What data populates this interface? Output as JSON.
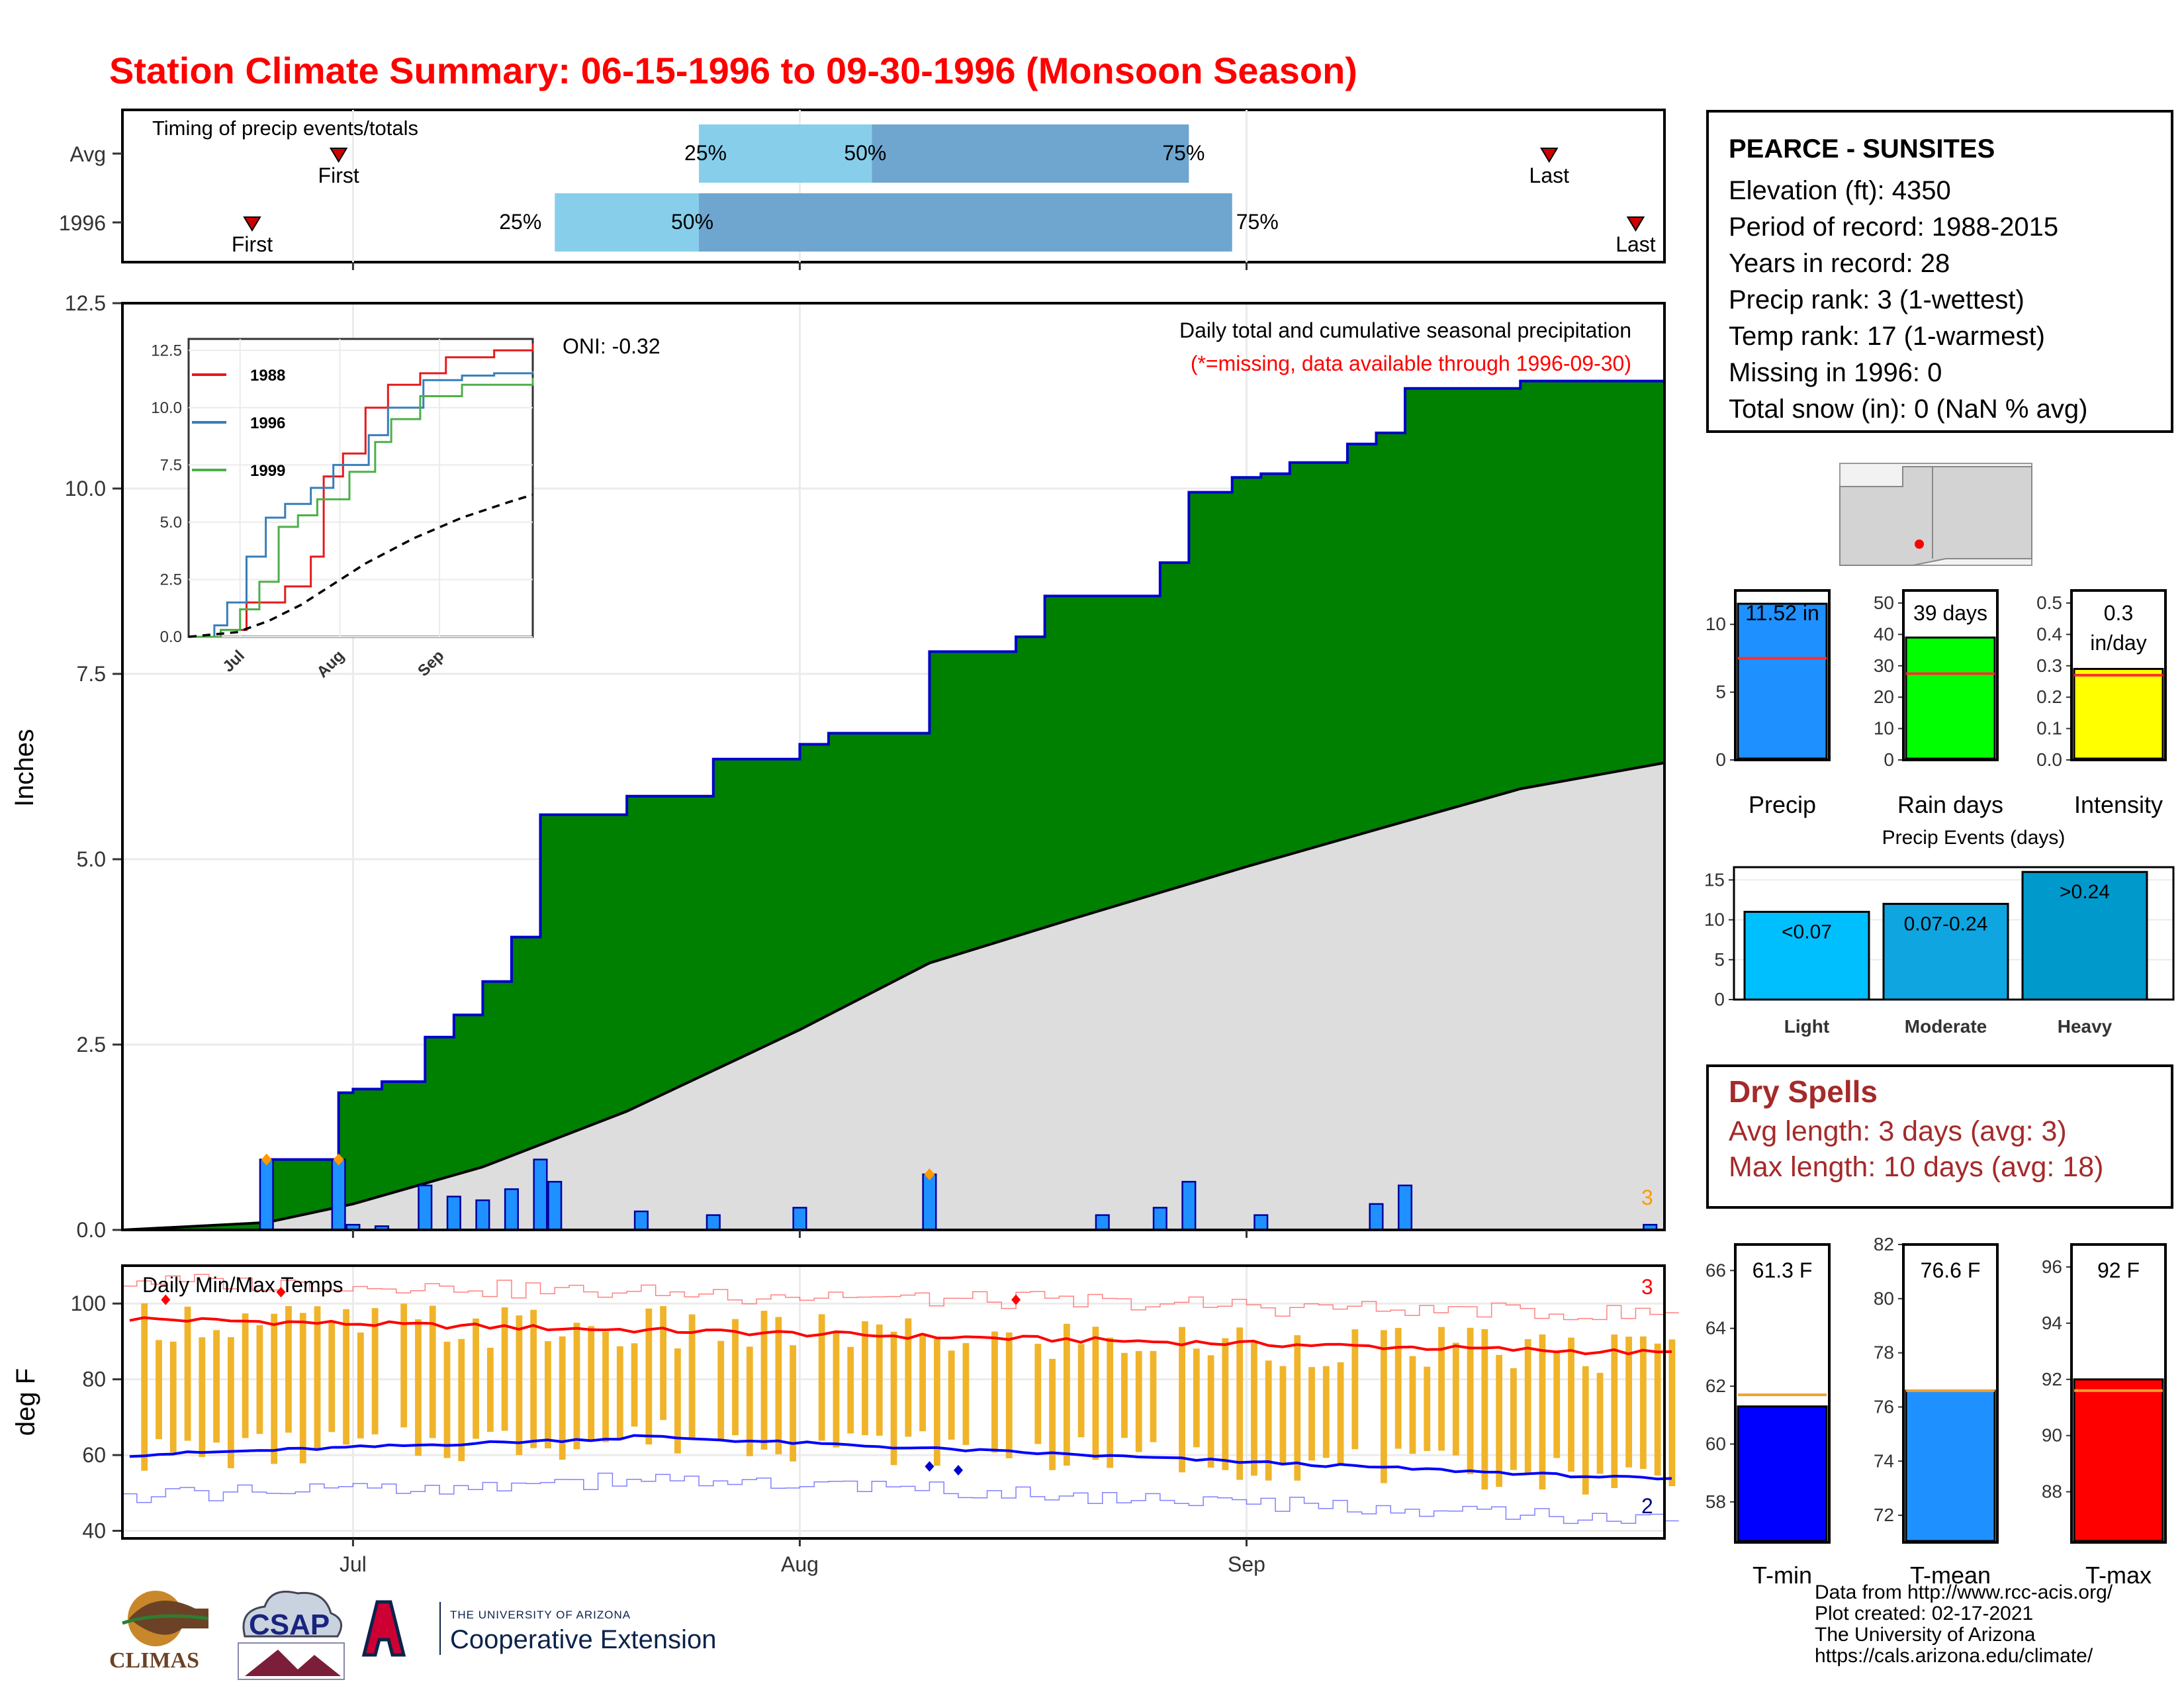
{
  "title": "Station Climate Summary: 06-15-1996 to 09-30-1996 (Monsoon Season)",
  "timing": {
    "label": "Timing of precip events/totals",
    "rows": [
      {
        "name": "Avg",
        "first": "2024-06-30",
        "q25": "2024-07-25",
        "q50": "2024-08-06",
        "q75": "2024-08-28",
        "last": "2024-09-22"
      },
      {
        "name": "1996",
        "first": "2024-06-24",
        "q25": "2024-07-15",
        "q50": "2024-07-25",
        "q75": "2024-08-31",
        "last": "2024-09-28"
      }
    ],
    "labels": {
      "first": "First",
      "last": "Last",
      "q25": "25%",
      "q50": "50%",
      "q75": "75%"
    }
  },
  "station": {
    "name": "PEARCE - SUNSITES",
    "lines": [
      "Elevation (ft): 4350",
      "Period of record: 1988-2015",
      "Years in record: 28",
      "Precip rank: 3 (1-wettest)",
      "Temp rank: 17 (1-warmest)",
      "Missing in 1996: 0",
      "Total snow (in): 0 (NaN % avg)"
    ]
  },
  "precip_main": {
    "annotation1": "Daily total and cumulative seasonal precipitation",
    "annotation2": "(*=missing, data available through 1996-09-30)",
    "oni": "ONI: -0.32",
    "ylabel": "Inches",
    "corner_count": "3"
  },
  "inset": {
    "legend": [
      "1988",
      "1996",
      "1999"
    ],
    "colors": [
      "#e41a1c",
      "#377eb8",
      "#4daf4a"
    ],
    "yticks": [
      "0.0",
      "2.5",
      "5.0",
      "7.5",
      "10.0",
      "12.5"
    ],
    "xticks": [
      "Jul",
      "Aug",
      "Sep"
    ]
  },
  "temp": {
    "label": "Daily Min/Max Temps",
    "ylabel": "deg F",
    "yticks": [
      "40",
      "60",
      "80",
      "100"
    ],
    "record_high_count": "3",
    "record_low_count": "2"
  },
  "xaxis": {
    "ticks": [
      "Jul",
      "Aug",
      "Sep"
    ]
  },
  "bars": {
    "precip": {
      "label": "Precip",
      "value_text": "11.52 in",
      "value": 11.52,
      "avg": 7.5,
      "color": "#1e90ff",
      "ticks": [
        "0",
        "5",
        "10"
      ]
    },
    "raindays": {
      "label": "Rain days",
      "value_text": "39 days",
      "value": 39,
      "avg": 27.5,
      "color": "#00ff00",
      "ticks": [
        "0",
        "10",
        "20",
        "30",
        "40",
        "50"
      ]
    },
    "intensity": {
      "label": "Intensity",
      "value_text": "0.3",
      "value_text2": "in/day",
      "value": 0.29,
      "avg": 0.27,
      "color": "#ffff00",
      "ticks": [
        "0.0",
        "0.1",
        "0.2",
        "0.3",
        "0.4",
        "0.5"
      ]
    }
  },
  "events": {
    "title": "Precip Events (days)",
    "categories": [
      "Light",
      "Moderate",
      "Heavy"
    ],
    "labels": [
      "<0.07",
      "0.07-0.24",
      ">0.24"
    ],
    "values": [
      11,
      12,
      16
    ],
    "colors": [
      "#00bfff",
      "#0ea5e0",
      "#0099cc"
    ],
    "ticks": [
      "0",
      "5",
      "10",
      "15"
    ]
  },
  "dry_spells": {
    "title": "Dry Spells",
    "avg_length": "Avg length: 3 days (avg: 3)",
    "max_length": "Max length: 10 days (avg: 18)"
  },
  "temp_bars": {
    "tmin": {
      "label": "T-min",
      "value_text": "61.3 F",
      "value": 61.3,
      "avg": 61.7,
      "color": "#0000ff",
      "ticks": [
        "58",
        "60",
        "62",
        "64",
        "66"
      ]
    },
    "tmean": {
      "label": "T-mean",
      "value_text": "76.6 F",
      "value": 76.6,
      "avg": 76.6,
      "color": "#1e90ff",
      "ticks": [
        "72",
        "74",
        "76",
        "78",
        "80",
        "82"
      ]
    },
    "tmax": {
      "label": "T-max",
      "value_text": "92 F",
      "value": 92,
      "avg": 91.6,
      "color": "#ff0000",
      "ticks": [
        "88",
        "90",
        "92",
        "94",
        "96"
      ]
    }
  },
  "credits": [
    "Data from http://www.rcc-acis.org/",
    "Plot created: 02-17-2021",
    "The University of Arizona",
    "https://cals.arizona.edu/climate/"
  ],
  "logos": {
    "climas": "CLIMAS",
    "csap": "CSAP",
    "ua_small": "THE UNIVERSITY OF ARIZONA",
    "ua_big": "Cooperative Extension"
  },
  "chart_data": [
    {
      "type": "area",
      "title": "Daily total and cumulative seasonal precipitation",
      "ylabel": "Inches",
      "ylim": [
        0,
        12.5
      ],
      "xlim": [
        "1996-06-15",
        "1996-09-30"
      ],
      "series": [
        {
          "name": "1996 cumulative",
          "x": [
            "1996-06-15",
            "1996-06-25",
            "1996-06-30",
            "1996-07-01",
            "1996-07-03",
            "1996-07-06",
            "1996-07-08",
            "1996-07-10",
            "1996-07-12",
            "1996-07-14",
            "1996-07-20",
            "1996-07-26",
            "1996-08-01",
            "1996-08-03",
            "1996-08-10",
            "1996-08-16",
            "1996-08-18",
            "1996-08-26",
            "1996-08-28",
            "1996-08-31",
            "1996-09-02",
            "1996-09-04",
            "1996-09-08",
            "1996-09-10",
            "1996-09-12",
            "1996-09-20",
            "1996-09-30"
          ],
          "values": [
            0,
            0.95,
            1.85,
            1.9,
            2.0,
            2.6,
            2.9,
            3.35,
            3.95,
            5.6,
            5.85,
            6.35,
            6.55,
            6.7,
            7.8,
            8.0,
            8.55,
            9.0,
            9.95,
            10.15,
            10.2,
            10.35,
            10.6,
            10.75,
            11.35,
            11.45,
            11.52
          ]
        },
        {
          "name": "Avg cumulative",
          "x": [
            "1996-06-15",
            "1996-06-25",
            "1996-07-01",
            "1996-07-10",
            "1996-07-20",
            "1996-08-01",
            "1996-08-10",
            "1996-08-20",
            "1996-09-01",
            "1996-09-10",
            "1996-09-20",
            "1996-09-30"
          ],
          "values": [
            0,
            0.1,
            0.35,
            0.85,
            1.6,
            2.7,
            3.6,
            4.2,
            4.9,
            5.4,
            5.95,
            6.3
          ]
        },
        {
          "name": "Daily precip",
          "x": [
            "1996-06-25",
            "1996-06-30",
            "1996-07-01",
            "1996-07-03",
            "1996-07-06",
            "1996-07-08",
            "1996-07-10",
            "1996-07-12",
            "1996-07-14",
            "1996-07-15",
            "1996-07-21",
            "1996-07-26",
            "1996-08-01",
            "1996-08-10",
            "1996-08-22",
            "1996-08-26",
            "1996-08-28",
            "1996-09-02",
            "1996-09-10",
            "1996-09-12",
            "1996-09-29"
          ],
          "values": [
            0.95,
            0.95,
            0.07,
            0.05,
            0.6,
            0.45,
            0.4,
            0.55,
            0.95,
            0.65,
            0.25,
            0.2,
            0.3,
            0.75,
            0.2,
            0.3,
            0.65,
            0.2,
            0.35,
            0.6,
            0.07
          ]
        }
      ]
    },
    {
      "type": "line",
      "title": "Daily Min/Max Temps",
      "ylabel": "deg F",
      "ylim": [
        38,
        110
      ],
      "series": [
        {
          "name": "Avg max",
          "x": [
            "1996-06-15",
            "1996-07-01",
            "1996-07-15",
            "1996-08-01",
            "1996-08-15",
            "1996-09-01",
            "1996-09-15",
            "1996-09-30"
          ],
          "values": [
            96,
            95,
            93,
            93,
            91,
            90,
            89,
            87
          ]
        },
        {
          "name": "Avg min",
          "x": [
            "1996-06-15",
            "1996-07-01",
            "1996-07-15",
            "1996-08-01",
            "1996-08-15",
            "1996-09-01",
            "1996-09-15",
            "1996-09-30"
          ],
          "values": [
            60,
            63,
            64,
            64,
            63,
            61,
            57,
            53
          ]
        }
      ]
    }
  ]
}
